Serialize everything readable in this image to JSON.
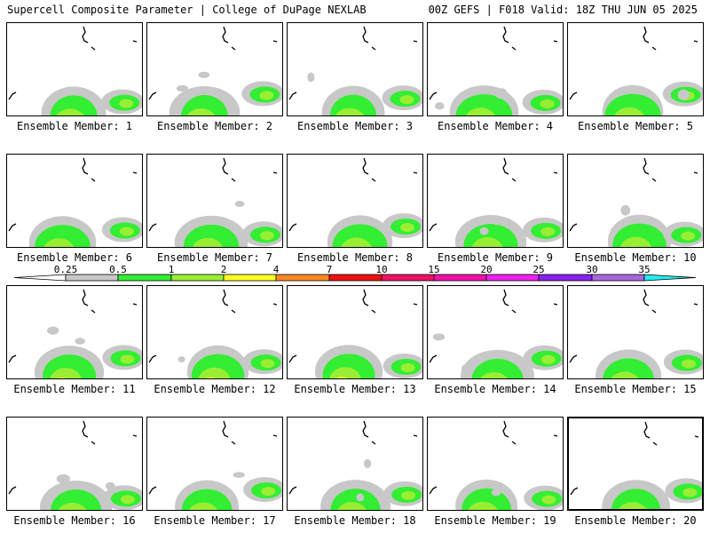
{
  "header": {
    "title": "Supercell Composite Parameter | College of DuPage NEXLAB",
    "valid": "00Z GEFS | F018 Valid: 18Z THU JUN 05 2025"
  },
  "members": [
    {
      "label": "Ensemble Member: 1"
    },
    {
      "label": "Ensemble Member: 2"
    },
    {
      "label": "Ensemble Member: 3"
    },
    {
      "label": "Ensemble Member: 4"
    },
    {
      "label": "Ensemble Member: 5"
    },
    {
      "label": "Ensemble Member: 6"
    },
    {
      "label": "Ensemble Member: 7"
    },
    {
      "label": "Ensemble Member: 8"
    },
    {
      "label": "Ensemble Member: 9"
    },
    {
      "label": "Ensemble Member: 10"
    },
    {
      "label": "Ensemble Member: 11"
    },
    {
      "label": "Ensemble Member: 12"
    },
    {
      "label": "Ensemble Member: 13"
    },
    {
      "label": "Ensemble Member: 14"
    },
    {
      "label": "Ensemble Member: 15"
    },
    {
      "label": "Ensemble Member: 16"
    },
    {
      "label": "Ensemble Member: 17"
    },
    {
      "label": "Ensemble Member: 18"
    },
    {
      "label": "Ensemble Member: 19"
    },
    {
      "label": "Ensemble Member: 20",
      "selected": true
    }
  ],
  "colorbar": {
    "ticks": [
      "0.25",
      "0.5",
      "1",
      "2",
      "4",
      "7",
      "10",
      "15",
      "20",
      "25",
      "30",
      "35"
    ],
    "colors": [
      "#c8c8c8",
      "#33ee33",
      "#99ee33",
      "#ffff22",
      "#ff8a22",
      "#ee1111",
      "#ee1166",
      "#ee11aa",
      "#ee22ee",
      "#8822ee",
      "#aa66dd",
      "#22eeee"
    ]
  },
  "fill_colors": {
    "gray": "#c8c8c8",
    "green": "#33ee33",
    "lime": "#99ee33",
    "yellow": "#ffff22"
  }
}
